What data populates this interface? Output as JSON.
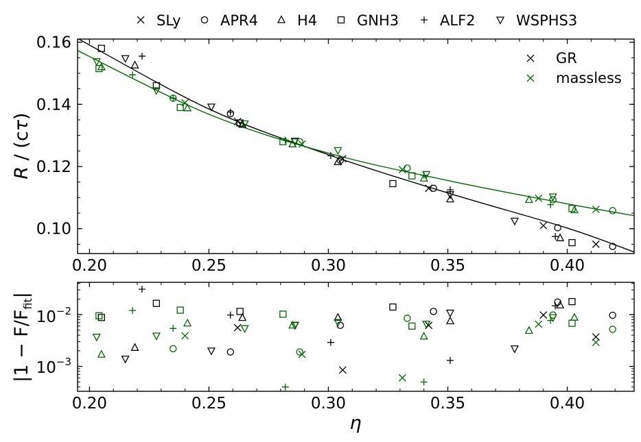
{
  "chart_data": [
    {
      "type": "scatter",
      "panel": "top",
      "ylabel": "R / (cτ)",
      "xlabel": "",
      "xlim": [
        0.195,
        0.428
      ],
      "ylim": [
        0.092,
        0.161
      ],
      "xticks": [
        0.2,
        0.25,
        0.3,
        0.35,
        0.4
      ],
      "xtick_labels": [
        "0.20",
        "0.25",
        "0.30",
        "0.35",
        "0.40"
      ],
      "yticks": [
        0.1,
        0.12,
        0.14,
        0.16
      ],
      "ytick_labels": [
        "0.10",
        "0.12",
        "0.14",
        "0.16"
      ],
      "legend_position": "top-right",
      "legend": [
        {
          "label": "GR",
          "color": "#000000",
          "marker": "x"
        },
        {
          "label": "massless",
          "color": "#006400",
          "marker": "x"
        }
      ],
      "fit_curves": [
        {
          "name": "GR fit",
          "color": "#000000",
          "x": [
            0.195,
            0.25,
            0.3,
            0.35,
            0.4,
            0.428
          ],
          "y": [
            0.1612,
            0.1385,
            0.1238,
            0.1115,
            0.1002,
            0.0925
          ]
        },
        {
          "name": "massless fit",
          "color": "#006400",
          "x": [
            0.195,
            0.25,
            0.3,
            0.35,
            0.4,
            0.428
          ],
          "y": [
            0.1573,
            0.1368,
            0.1243,
            0.1155,
            0.108,
            0.1042
          ]
        }
      ],
      "series": [
        {
          "name": "SLy",
          "gravity": "GR",
          "marker": "x",
          "color": "#000000",
          "points": [
            [
              0.262,
              0.1345
            ],
            [
              0.306,
              0.1225
            ],
            [
              0.342,
              0.113
            ],
            [
              0.39,
              0.101
            ],
            [
              0.412,
              0.095
            ]
          ]
        },
        {
          "name": "APR4",
          "gravity": "GR",
          "marker": "o",
          "color": "#000000",
          "points": [
            [
              0.259,
              0.137
            ],
            [
              0.305,
              0.122
            ],
            [
              0.344,
              0.113
            ],
            [
              0.396,
              0.1003
            ],
            [
              0.419,
              0.0943
            ]
          ]
        },
        {
          "name": "H4",
          "gravity": "GR",
          "marker": "^",
          "color": "#000000",
          "points": [
            [
              0.219,
              0.1526
            ],
            [
              0.264,
              0.1335
            ],
            [
              0.304,
              0.1215
            ],
            [
              0.351,
              0.1095
            ],
            [
              0.397,
              0.097
            ]
          ]
        },
        {
          "name": "GNH3",
          "gravity": "GR",
          "marker": "s",
          "color": "#000000",
          "points": [
            [
              0.205,
              0.158
            ],
            [
              0.228,
              0.146
            ],
            [
              0.263,
              0.134
            ],
            [
              0.327,
              0.1145
            ],
            [
              0.402,
              0.0955
            ]
          ]
        },
        {
          "name": "ALF2",
          "gravity": "GR",
          "marker": "+",
          "color": "#000000",
          "points": [
            [
              0.222,
              0.1555
            ],
            [
              0.259,
              0.1375
            ],
            [
              0.301,
              0.1235
            ],
            [
              0.351,
              0.1125
            ],
            [
              0.395,
              0.0975
            ]
          ]
        },
        {
          "name": "WSPHS3",
          "gravity": "GR",
          "marker": "v",
          "color": "#000000",
          "points": [
            [
              0.215,
              0.1548
            ],
            [
              0.251,
              0.1392
            ],
            [
              0.286,
              0.1282
            ],
            [
              0.351,
              0.111
            ],
            [
              0.378,
              0.1025
            ]
          ]
        },
        {
          "name": "SLy",
          "gravity": "massless",
          "marker": "x",
          "color": "#006400",
          "points": [
            [
              0.24,
              0.1405
            ],
            [
              0.289,
              0.1272
            ],
            [
              0.331,
              0.119
            ],
            [
              0.388,
              0.1098
            ],
            [
              0.412,
              0.1062
            ]
          ]
        },
        {
          "name": "APR4",
          "gravity": "massless",
          "marker": "o",
          "color": "#006400",
          "points": [
            [
              0.235,
              0.142
            ],
            [
              0.288,
              0.128
            ],
            [
              0.333,
              0.1195
            ],
            [
              0.394,
              0.1093
            ],
            [
              0.419,
              0.1058
            ]
          ]
        },
        {
          "name": "H4",
          "gravity": "massless",
          "marker": "^",
          "color": "#006400",
          "points": [
            [
              0.205,
              0.152
            ],
            [
              0.241,
              0.1388
            ],
            [
              0.285,
              0.1272
            ],
            [
              0.34,
              0.1162
            ],
            [
              0.384,
              0.1093
            ],
            [
              0.403,
              0.106
            ]
          ]
        },
        {
          "name": "GNH3",
          "gravity": "massless",
          "marker": "s",
          "color": "#006400",
          "points": [
            [
              0.204,
              0.1515
            ],
            [
              0.238,
              0.139
            ],
            [
              0.281,
              0.128
            ],
            [
              0.335,
              0.117
            ],
            [
              0.402,
              0.1065
            ]
          ]
        },
        {
          "name": "ALF2",
          "gravity": "massless",
          "marker": "+",
          "color": "#006400",
          "points": [
            [
              0.218,
              0.1495
            ],
            [
              0.235,
              0.142
            ],
            [
              0.282,
              0.1285
            ],
            [
              0.34,
              0.1172
            ],
            [
              0.393,
              0.1077
            ]
          ]
        },
        {
          "name": "WSPHS3",
          "gravity": "massless",
          "marker": "v",
          "color": "#006400",
          "points": [
            [
              0.203,
              0.1538
            ],
            [
              0.228,
              0.1445
            ],
            [
              0.265,
              0.1338
            ],
            [
              0.286,
              0.128
            ],
            [
              0.304,
              0.1252
            ],
            [
              0.341,
              0.1175
            ],
            [
              0.394,
              0.1103
            ]
          ]
        }
      ]
    },
    {
      "type": "scatter",
      "panel": "bottom",
      "ylabel": "|1 − F/F_fit|",
      "xlabel": "η",
      "yscale": "log",
      "xlim": [
        0.195,
        0.428
      ],
      "ylim": [
        0.00033,
        0.042
      ],
      "xticks": [
        0.2,
        0.25,
        0.3,
        0.35,
        0.4
      ],
      "xtick_labels": [
        "0.20",
        "0.25",
        "0.30",
        "0.35",
        "0.40"
      ],
      "yticks": [
        0.001,
        0.01
      ],
      "series": [
        {
          "name": "SLy",
          "gravity": "GR",
          "marker": "x",
          "color": "#000000",
          "points": [
            [
              0.262,
              0.0056
            ],
            [
              0.306,
              0.00085
            ],
            [
              0.342,
              0.0062
            ],
            [
              0.39,
              0.0098
            ],
            [
              0.412,
              0.0037
            ]
          ]
        },
        {
          "name": "APR4",
          "gravity": "GR",
          "marker": "o",
          "color": "#000000",
          "points": [
            [
              0.259,
              0.0019
            ],
            [
              0.305,
              0.0062
            ],
            [
              0.344,
              0.0115
            ],
            [
              0.396,
              0.0175
            ],
            [
              0.419,
              0.0097
            ]
          ]
        },
        {
          "name": "H4",
          "gravity": "GR",
          "marker": "^",
          "color": "#000000",
          "points": [
            [
              0.219,
              0.0023
            ],
            [
              0.264,
              0.0087
            ],
            [
              0.304,
              0.0088
            ],
            [
              0.351,
              0.0075
            ],
            [
              0.397,
              0.0152
            ]
          ]
        },
        {
          "name": "GNH3",
          "gravity": "GR",
          "marker": "s",
          "color": "#000000",
          "points": [
            [
              0.205,
              0.0088
            ],
            [
              0.228,
              0.0165
            ],
            [
              0.263,
              0.0115
            ],
            [
              0.327,
              0.014
            ],
            [
              0.402,
              0.0178
            ]
          ]
        },
        {
          "name": "ALF2",
          "gravity": "GR",
          "marker": "+",
          "color": "#000000",
          "points": [
            [
              0.222,
              0.031
            ],
            [
              0.259,
              0.0098
            ],
            [
              0.301,
              0.0029
            ],
            [
              0.351,
              0.0013
            ],
            [
              0.395,
              0.0148
            ]
          ]
        },
        {
          "name": "WSPHS3",
          "gravity": "GR",
          "marker": "v",
          "color": "#000000",
          "points": [
            [
              0.215,
              0.0014
            ],
            [
              0.251,
              0.002
            ],
            [
              0.286,
              0.0063
            ],
            [
              0.351,
              0.0108
            ],
            [
              0.378,
              0.0022
            ]
          ]
        },
        {
          "name": "SLy",
          "gravity": "massless",
          "marker": "x",
          "color": "#006400",
          "points": [
            [
              0.24,
              0.0039
            ],
            [
              0.289,
              0.0017
            ],
            [
              0.331,
              0.0006
            ],
            [
              0.388,
              0.0065
            ],
            [
              0.412,
              0.0029
            ]
          ]
        },
        {
          "name": "APR4",
          "gravity": "massless",
          "marker": "o",
          "color": "#006400",
          "points": [
            [
              0.235,
              0.0022
            ],
            [
              0.288,
              0.0019
            ],
            [
              0.333,
              0.0085
            ],
            [
              0.394,
              0.0098
            ],
            [
              0.419,
              0.0052
            ]
          ]
        },
        {
          "name": "H4",
          "gravity": "massless",
          "marker": "^",
          "color": "#006400",
          "points": [
            [
              0.205,
              0.0017
            ],
            [
              0.241,
              0.0068
            ],
            [
              0.285,
              0.0062
            ],
            [
              0.34,
              0.0038
            ],
            [
              0.384,
              0.0049
            ],
            [
              0.403,
              0.0088
            ]
          ]
        },
        {
          "name": "GNH3",
          "gravity": "massless",
          "marker": "s",
          "color": "#006400",
          "points": [
            [
              0.204,
              0.0095
            ],
            [
              0.238,
              0.0122
            ],
            [
              0.281,
              0.0102
            ],
            [
              0.335,
              0.006
            ],
            [
              0.402,
              0.0068
            ]
          ]
        },
        {
          "name": "ALF2",
          "gravity": "massless",
          "marker": "+",
          "color": "#006400",
          "points": [
            [
              0.218,
              0.012
            ],
            [
              0.235,
              0.0054
            ],
            [
              0.282,
              0.0004
            ],
            [
              0.34,
              0.0005
            ],
            [
              0.393,
              0.0077
            ]
          ]
        },
        {
          "name": "WSPHS3",
          "gravity": "massless",
          "marker": "v",
          "color": "#006400",
          "points": [
            [
              0.203,
              0.0037
            ],
            [
              0.228,
              0.0039
            ],
            [
              0.265,
              0.0054
            ],
            [
              0.286,
              0.0062
            ],
            [
              0.304,
              0.0071
            ],
            [
              0.341,
              0.0066
            ],
            [
              0.394,
              0.0088
            ]
          ]
        }
      ]
    }
  ],
  "eos_legend": [
    {
      "label": "SLy",
      "marker": "x"
    },
    {
      "label": "APR4",
      "marker": "o"
    },
    {
      "label": "H4",
      "marker": "^"
    },
    {
      "label": "GNH3",
      "marker": "s"
    },
    {
      "label": "ALF2",
      "marker": "+"
    },
    {
      "label": "WSPHS3",
      "marker": "v"
    }
  ],
  "bottom_ytick_labels": {
    "minor": "10",
    "minor_exp": "−3",
    "major": "10",
    "major_exp": "−2"
  },
  "bottom_ylabel_parts": {
    "left": "|1 − F/F",
    "sub": "fit",
    "right": "|"
  },
  "top_ylabel_parts": {
    "italic": "R",
    "rest": " / (c",
    "tau": "τ",
    "close": ")"
  }
}
